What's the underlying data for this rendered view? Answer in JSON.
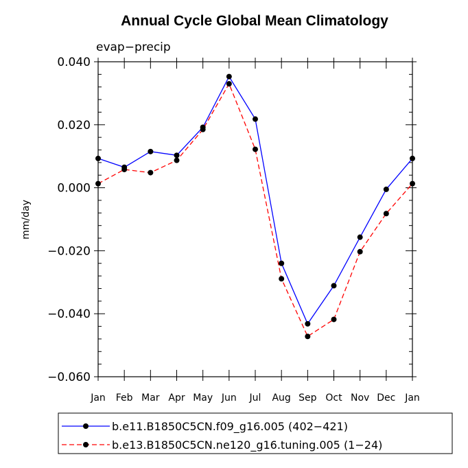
{
  "chart_data": {
    "type": "line",
    "title": "Annual Cycle Global Mean Climatology",
    "subtitle": "evap−precip",
    "xlabel": "",
    "ylabel": "mm/day",
    "ylim": [
      -0.06,
      0.04
    ],
    "yticks": [
      0.04,
      0.02,
      0.0,
      -0.02,
      -0.04,
      -0.06
    ],
    "ytick_labels": [
      "0.040",
      "0.020",
      "0.000",
      "−0.020",
      "−0.040",
      "−0.060"
    ],
    "categories": [
      "Jan",
      "Feb",
      "Mar",
      "Apr",
      "May",
      "Jun",
      "Jul",
      "Aug",
      "Sep",
      "Oct",
      "Nov",
      "Dec",
      "Jan"
    ],
    "grid": false,
    "legend_position": "bottom",
    "series": [
      {
        "name": "b.e11.B1850C5CN.f09_g16.005 (402−421)",
        "color": "#0000ff",
        "dash": "solid",
        "values": [
          0.0093,
          0.0065,
          0.0115,
          0.0103,
          0.0192,
          0.0353,
          0.0218,
          -0.024,
          -0.0432,
          -0.0311,
          -0.0157,
          -0.0005,
          0.0093
        ]
      },
      {
        "name": "b.e13.B1850C5CN.ne120_g16.tuning.005 (1−24)",
        "color": "#ff0000",
        "dash": "dashed",
        "values": [
          0.0013,
          0.0058,
          0.0048,
          0.0087,
          0.0185,
          0.033,
          0.0122,
          -0.0289,
          -0.0472,
          -0.0418,
          -0.0203,
          -0.0082,
          0.0013
        ]
      }
    ]
  }
}
